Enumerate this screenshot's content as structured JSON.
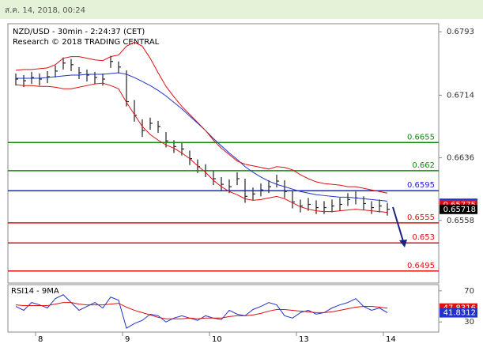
{
  "header": "ส.ค. 14, 2018, 00:24",
  "chart_data": [
    {
      "type": "ohlc",
      "title": "NZD/USD - 30min - 2:24:37 (CET)",
      "subtitle": "Research © 2018 TRADING CENTRAL",
      "categories": [
        null,
        null,
        null,
        "8",
        null,
        null,
        null,
        null,
        null,
        null,
        null,
        null,
        null,
        null,
        "9",
        null,
        null,
        null,
        null,
        null,
        null,
        null,
        null,
        null,
        null,
        "10",
        null,
        null,
        null,
        null,
        null,
        null,
        null,
        null,
        null,
        null,
        "13",
        null,
        null,
        null,
        null,
        null,
        null,
        null,
        null,
        null,
        null,
        "14"
      ],
      "ylim": [
        0.648,
        0.6803
      ],
      "yticks": [
        0.6558,
        0.6636,
        0.6714,
        0.6793
      ],
      "high": [
        0.6741,
        0.6739,
        0.6743,
        0.6741,
        0.6744,
        0.6751,
        0.6761,
        0.6759,
        0.6749,
        0.6746,
        0.6743,
        0.6741,
        0.6763,
        0.6756,
        0.6745,
        0.6708,
        0.6684,
        0.6686,
        0.6682,
        0.6668,
        0.6658,
        0.6655,
        0.6645,
        0.6634,
        0.6628,
        0.662,
        0.6612,
        0.6609,
        0.6618,
        0.661,
        0.6599,
        0.6604,
        0.6608,
        0.6615,
        0.6608,
        0.6595,
        0.6584,
        0.6586,
        0.6583,
        0.6582,
        0.6584,
        0.6586,
        0.6592,
        0.6594,
        0.6588,
        0.6582,
        0.6584,
        0.658
      ],
      "low": [
        0.6726,
        0.6724,
        0.6728,
        0.6726,
        0.6729,
        0.6736,
        0.6746,
        0.6744,
        0.6734,
        0.6731,
        0.6728,
        0.6726,
        0.6748,
        0.6741,
        0.67,
        0.6681,
        0.6662,
        0.6671,
        0.6667,
        0.6649,
        0.6642,
        0.6639,
        0.6627,
        0.6617,
        0.6612,
        0.6602,
        0.6595,
        0.6592,
        0.6602,
        0.658,
        0.6583,
        0.6588,
        0.6592,
        0.6599,
        0.6586,
        0.6573,
        0.6568,
        0.657,
        0.6566,
        0.6566,
        0.6568,
        0.657,
        0.6576,
        0.6578,
        0.6571,
        0.6566,
        0.6568,
        0.6564
      ],
      "close": [
        0.6734,
        0.6732,
        0.6736,
        0.6734,
        0.6737,
        0.6744,
        0.6754,
        0.6752,
        0.6742,
        0.6739,
        0.6736,
        0.6734,
        0.6756,
        0.6749,
        0.6706,
        0.6689,
        0.667,
        0.6679,
        0.6675,
        0.6657,
        0.665,
        0.6647,
        0.6635,
        0.6625,
        0.662,
        0.661,
        0.6603,
        0.66,
        0.661,
        0.6588,
        0.6591,
        0.6596,
        0.66,
        0.6607,
        0.6594,
        0.6581,
        0.6576,
        0.6578,
        0.6574,
        0.6574,
        0.6576,
        0.6578,
        0.6584,
        0.6586,
        0.6579,
        0.6574,
        0.6576,
        0.6572
      ],
      "series": [
        {
          "color": "#2233cc",
          "values": [
            0.6735,
            0.6735,
            0.6735,
            0.6735,
            0.6736,
            0.6737,
            0.6738,
            0.6739,
            0.6739,
            0.674,
            0.674,
            0.674,
            0.6741,
            0.6742,
            0.674,
            0.6736,
            0.6731,
            0.6726,
            0.672,
            0.6713,
            0.6705,
            0.6697,
            0.6688,
            0.6679,
            0.667,
            0.666,
            0.6651,
            0.6642,
            0.6634,
            0.6625,
            0.6618,
            0.6612,
            0.6607,
            0.6603,
            0.66,
            0.6597,
            0.6594,
            0.6592,
            0.659,
            0.6589,
            0.6588,
            0.6587,
            0.6587,
            0.6586,
            0.6585,
            0.6584,
            0.6583,
            0.6582
          ]
        },
        {
          "color": "#dd1111",
          "values": [
            0.6745,
            0.6746,
            0.6746,
            0.6747,
            0.6748,
            0.6752,
            0.676,
            0.6762,
            0.6762,
            0.676,
            0.6758,
            0.6757,
            0.6762,
            0.6764,
            0.6775,
            0.678,
            0.6775,
            0.676,
            0.6742,
            0.6725,
            0.6712,
            0.67,
            0.669,
            0.668,
            0.667,
            0.6658,
            0.6648,
            0.664,
            0.6632,
            0.6628,
            0.6626,
            0.6624,
            0.6622,
            0.6625,
            0.6624,
            0.6621,
            0.6615,
            0.661,
            0.6606,
            0.6604,
            0.6603,
            0.6602,
            0.66,
            0.66,
            0.6598,
            0.6596,
            0.6594,
            0.6592
          ]
        },
        {
          "color": "#dd1111",
          "values": [
            0.6727,
            0.6726,
            0.6726,
            0.6725,
            0.6725,
            0.6724,
            0.6722,
            0.6722,
            0.6724,
            0.6726,
            0.6728,
            0.6729,
            0.6726,
            0.6722,
            0.6705,
            0.669,
            0.6675,
            0.6665,
            0.6658,
            0.6652,
            0.6648,
            0.6642,
            0.6635,
            0.6626,
            0.6618,
            0.6608,
            0.66,
            0.6594,
            0.659,
            0.6585,
            0.6583,
            0.6584,
            0.6586,
            0.6588,
            0.6585,
            0.658,
            0.6575,
            0.6572,
            0.657,
            0.6569,
            0.6569,
            0.657,
            0.6571,
            0.6572,
            0.6571,
            0.657,
            0.6569,
            0.6568
          ]
        }
      ],
      "levels": [
        {
          "value": 0.6655,
          "color": "#118811"
        },
        {
          "value": 0.662,
          "color": "#118811"
        },
        {
          "value": 0.6595,
          "color": "#2222dd"
        },
        {
          "value": 0.6555,
          "color": "#dd1111"
        },
        {
          "value": 0.653,
          "color": "#dd1111"
        },
        {
          "value": 0.6495,
          "color": "#dd1111"
        }
      ],
      "tags": [
        {
          "value": 0.65793,
          "color": "#2233cc"
        },
        {
          "value": 0.65775,
          "color": "#dd1111"
        },
        {
          "value": 0.65718,
          "color": "#000000"
        }
      ]
    },
    {
      "type": "line",
      "title": "RSI14 - 9MA",
      "ylim": [
        17,
        78
      ],
      "yticks": [
        30,
        70
      ],
      "series": [
        {
          "color": "#2233cc",
          "values": [
            50,
            45,
            55,
            52,
            48,
            60,
            65,
            55,
            45,
            50,
            55,
            48,
            62,
            58,
            22,
            28,
            32,
            40,
            38,
            30,
            35,
            38,
            35,
            32,
            38,
            35,
            33,
            45,
            40,
            38,
            46,
            50,
            55,
            52,
            38,
            35,
            42,
            45,
            40,
            42,
            48,
            52,
            55,
            60,
            50,
            45,
            48,
            42
          ]
        },
        {
          "color": "#dd1111",
          "values": [
            52,
            51,
            51,
            51,
            51,
            53,
            55,
            55,
            53,
            52,
            52,
            52,
            53,
            54,
            49,
            45,
            42,
            39,
            36,
            34,
            34,
            34,
            35,
            34,
            35,
            35,
            35,
            37,
            38,
            38,
            39,
            41,
            44,
            46,
            46,
            45,
            44,
            43,
            42,
            42,
            43,
            45,
            47,
            49,
            50,
            50,
            49,
            47.8
          ]
        }
      ],
      "tags": [
        {
          "value": 47.8316,
          "color": "#dd1111"
        },
        {
          "value": 41.8312,
          "color": "#2233cc"
        }
      ]
    }
  ]
}
